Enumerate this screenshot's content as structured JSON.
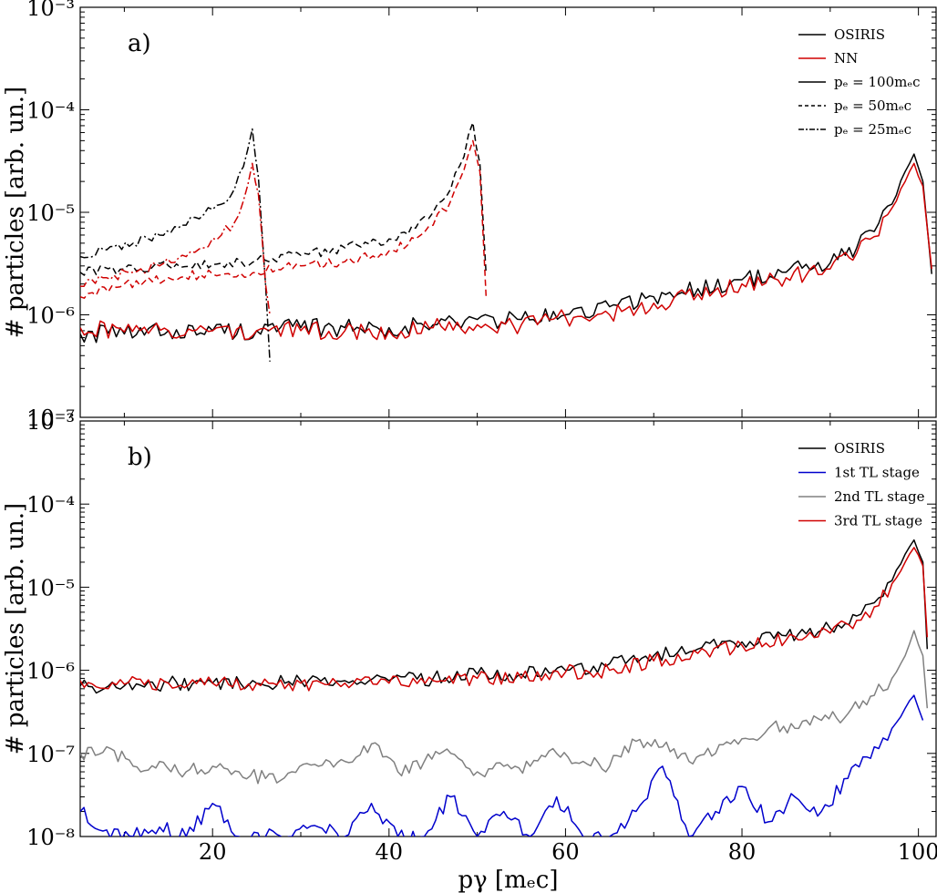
{
  "chart_data": [
    {
      "type": "line",
      "panel_label": "a)",
      "ylabel": "# particles [arb. un.]",
      "xlim": [
        5,
        102
      ],
      "ylim": [
        1e-07,
        0.001
      ],
      "yscale": "log",
      "ytick_labels": [
        "10⁻⁷",
        "10⁻⁶",
        "10⁻⁵",
        "10⁻⁴",
        "10⁻³"
      ],
      "legend": {
        "placement": "top-right",
        "entries": [
          {
            "label": "OSIRIS",
            "color": "#000000",
            "style": "solid"
          },
          {
            "label": "NN",
            "color": "#d00000",
            "style": "solid"
          },
          {
            "label": "pₑ = 100mₑc",
            "color": "#000000",
            "style": "solid"
          },
          {
            "label": "pₑ = 50mₑc",
            "color": "#000000",
            "style": "dashed"
          },
          {
            "label": "pₑ = 25mₑc",
            "color": "#000000",
            "style": "dashdot"
          }
        ]
      },
      "series": [
        {
          "source": "OSIRIS",
          "pe": "100",
          "color": "#000000",
          "style": "solid",
          "x": [
            5,
            10,
            15,
            20,
            25,
            30,
            35,
            40,
            45,
            50,
            55,
            60,
            65,
            70,
            75,
            80,
            85,
            90,
            93,
            95,
            97,
            98.5,
            99.5,
            100.5,
            101.5
          ],
          "y": [
            6.5e-07,
            6.5e-07,
            7e-07,
            7e-07,
            7e-07,
            7.5e-07,
            7.5e-07,
            7.5e-07,
            8e-07,
            9e-07,
            9e-07,
            1e-06,
            1.2e-06,
            1.5e-06,
            1.8e-06,
            2.2e-06,
            2.6e-06,
            3.2e-06,
            4.5e-06,
            6.5e-06,
            1.2e-05,
            2.5e-05,
            3.7e-05,
            2e-05,
            2.5e-06
          ]
        },
        {
          "source": "NN",
          "pe": "100",
          "color": "#d00000",
          "style": "solid",
          "x": [
            5,
            10,
            15,
            20,
            25,
            30,
            35,
            40,
            45,
            50,
            55,
            60,
            65,
            70,
            75,
            80,
            85,
            90,
            93,
            95,
            97,
            98.5,
            99.5,
            100.5,
            101.5
          ],
          "y": [
            7.5e-07,
            6.8e-07,
            7e-07,
            7e-07,
            7e-07,
            7e-07,
            7e-07,
            7e-07,
            7.5e-07,
            8e-07,
            8e-07,
            9.5e-07,
            1e-06,
            1.3e-06,
            1.6e-06,
            2e-06,
            2.3e-06,
            2.8e-06,
            4e-06,
            5.8e-06,
            1.1e-05,
            2e-05,
            3e-05,
            1.8e-05,
            2.8e-06
          ]
        },
        {
          "source": "OSIRIS",
          "pe": "50",
          "color": "#000000",
          "style": "dashed",
          "x": [
            5,
            10,
            15,
            20,
            25,
            30,
            35,
            40,
            43,
            45,
            47,
            48.5,
            49.5,
            50.3,
            51
          ],
          "y": [
            2.6e-06,
            2.8e-06,
            3e-06,
            3.1e-06,
            3.4e-06,
            3.8e-06,
            4.5e-06,
            5.5e-06,
            7e-06,
            1e-05,
            1.7e-05,
            3.5e-05,
            7.5e-05,
            3e-05,
            2.5e-06
          ]
        },
        {
          "source": "NN",
          "pe": "50",
          "color": "#d00000",
          "style": "dashed",
          "x": [
            5,
            10,
            15,
            20,
            25,
            30,
            35,
            40,
            43,
            45,
            47,
            48.5,
            49.5,
            50.3,
            51
          ],
          "y": [
            1.5e-06,
            2e-06,
            2.3e-06,
            2.5e-06,
            2.6e-06,
            3e-06,
            3.3e-06,
            4.2e-06,
            5.5e-06,
            7.5e-06,
            1.3e-05,
            2.6e-05,
            5e-05,
            2.5e-05,
            1.5e-06
          ]
        },
        {
          "source": "OSIRIS",
          "pe": "25",
          "color": "#000000",
          "style": "dashdot",
          "x": [
            5,
            8,
            11,
            14,
            17,
            19,
            21,
            22.5,
            23.5,
            24.5,
            25.2,
            26,
            26.5
          ],
          "y": [
            3.7e-06,
            4.3e-06,
            5e-06,
            6e-06,
            7.5e-06,
            9.5e-06,
            1.2e-05,
            1.7e-05,
            2.8e-05,
            6.5e-05,
            2.2e-05,
            2e-06,
            3.5e-07
          ]
        },
        {
          "source": "NN",
          "pe": "25",
          "color": "#d00000",
          "style": "dashdot",
          "x": [
            5,
            8,
            11,
            14,
            17,
            19,
            21,
            22.5,
            23.5,
            24.5,
            25.2,
            26,
            26.5
          ],
          "y": [
            1.9e-06,
            2.3e-06,
            2.6e-06,
            3e-06,
            3.7e-06,
            4.5e-06,
            6e-06,
            8e-06,
            1.3e-05,
            3e-05,
            1.5e-05,
            2e-06,
            1e-06
          ]
        }
      ]
    },
    {
      "type": "line",
      "panel_label": "b)",
      "xlabel": "pγ [mₑc]",
      "ylabel": "# particles [arb. un.]",
      "xlim": [
        5,
        102
      ],
      "ylim": [
        1e-08,
        0.001
      ],
      "yscale": "log",
      "xtick_labels": [
        "20",
        "40",
        "60",
        "80",
        "100"
      ],
      "ytick_labels": [
        "10⁻⁸",
        "10⁻⁷",
        "10⁻⁶",
        "10⁻⁵",
        "10⁻⁴",
        "10⁻³"
      ],
      "legend": {
        "placement": "top-right",
        "entries": [
          {
            "label": "OSIRIS",
            "color": "#000000",
            "style": "solid"
          },
          {
            "label": "1st TL stage",
            "color": "#0000cc",
            "style": "solid"
          },
          {
            "label": "2nd TL stage",
            "color": "#808080",
            "style": "solid"
          },
          {
            "label": "3rd TL stage",
            "color": "#d00000",
            "style": "solid"
          }
        ]
      },
      "series": [
        {
          "name": "OSIRIS",
          "color": "#000000",
          "x": [
            5,
            10,
            15,
            20,
            25,
            30,
            35,
            40,
            45,
            50,
            55,
            60,
            65,
            70,
            75,
            80,
            85,
            90,
            93,
            95,
            97,
            98.5,
            99.5,
            100.5,
            101
          ],
          "y": [
            6.5e-07,
            6.5e-07,
            7e-07,
            7e-07,
            7e-07,
            7.5e-07,
            7.5e-07,
            7.5e-07,
            8e-07,
            9e-07,
            9e-07,
            1e-06,
            1.2e-06,
            1.5e-06,
            1.8e-06,
            2.2e-06,
            2.6e-06,
            3.2e-06,
            4.5e-06,
            6.5e-06,
            1.2e-05,
            2.5e-05,
            3.7e-05,
            2e-05,
            1.8e-06
          ]
        },
        {
          "name": "1st TL stage",
          "color": "#0000cc",
          "x": [
            5,
            8,
            11,
            14,
            17,
            20,
            23,
            26,
            29,
            32,
            35,
            38,
            41,
            44,
            47,
            50,
            53,
            56,
            59,
            62,
            65,
            68,
            71,
            74,
            77,
            80,
            83,
            86,
            89,
            92,
            95,
            97,
            98.5,
            99.5,
            100.5
          ],
          "y": [
            2e-08,
            1.2e-08,
            1e-08,
            1.3e-08,
            1e-08,
            2.5e-08,
            1e-08,
            1e-08,
            1e-08,
            1.3e-08,
            1e-08,
            2.5e-08,
            1e-08,
            1e-08,
            3e-08,
            1e-08,
            2e-08,
            1e-08,
            3e-08,
            1e-08,
            1e-08,
            2e-08,
            7e-08,
            1e-08,
            2e-08,
            4e-08,
            1.5e-08,
            3e-08,
            2e-08,
            5e-08,
            1.2e-07,
            2e-07,
            3.5e-07,
            5e-07,
            2.5e-07
          ]
        },
        {
          "name": "2nd TL stage",
          "color": "#808080",
          "x": [
            5,
            8,
            11,
            14,
            17,
            20,
            23,
            26,
            29,
            32,
            35,
            38,
            41,
            44,
            47,
            50,
            53,
            56,
            59,
            62,
            65,
            68,
            71,
            74,
            77,
            80,
            83,
            86,
            89,
            92,
            95,
            97,
            98.5,
            99.5,
            100.5,
            101
          ],
          "y": [
            1e-07,
            1.2e-07,
            7e-08,
            8e-08,
            6e-08,
            7e-08,
            6e-08,
            5e-08,
            6e-08,
            7e-08,
            8e-08,
            1.3e-07,
            6e-08,
            8e-08,
            1e-07,
            6e-08,
            7e-08,
            7e-08,
            1e-07,
            8e-08,
            7e-08,
            1.4e-07,
            1.2e-07,
            8e-08,
            1e-07,
            1.5e-07,
            2e-07,
            2e-07,
            2.5e-07,
            3e-07,
            5e-07,
            8e-07,
            1.5e-06,
            3e-06,
            1.5e-06,
            3.5e-07
          ]
        },
        {
          "name": "3rd TL stage",
          "color": "#d00000",
          "x": [
            5,
            10,
            15,
            20,
            25,
            30,
            35,
            40,
            45,
            50,
            55,
            60,
            65,
            70,
            75,
            80,
            85,
            90,
            93,
            95,
            97,
            98.5,
            99.5,
            100.5,
            101
          ],
          "y": [
            7.5e-07,
            6.8e-07,
            7e-07,
            7e-07,
            7e-07,
            7e-07,
            7e-07,
            7e-07,
            7.5e-07,
            8e-07,
            8e-07,
            9.5e-07,
            1e-06,
            1.3e-06,
            1.6e-06,
            2e-06,
            2.3e-06,
            2.8e-06,
            4e-06,
            5.8e-06,
            1.1e-05,
            2e-05,
            3e-05,
            1.8e-05,
            2.5e-06
          ]
        }
      ]
    }
  ]
}
